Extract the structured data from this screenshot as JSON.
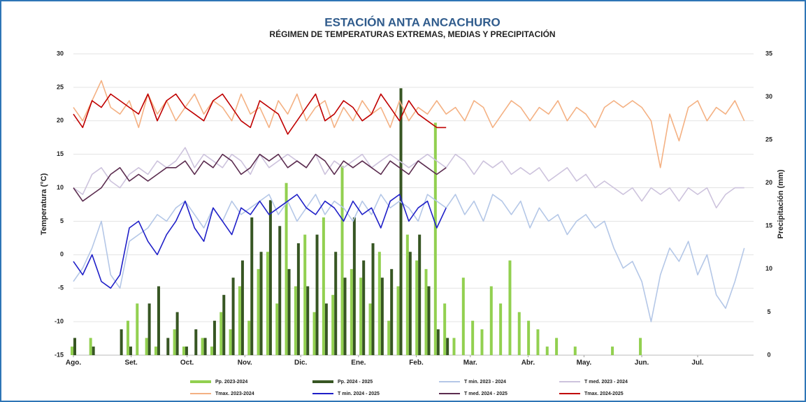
{
  "chart_data": {
    "type": "line",
    "title": "ESTACIÓN ANTA ANCACHURO",
    "subtitle": "RÉGIMEN DE TEMPERATURAS EXTREMAS, MEDIAS Y PRECIPITACIÓN",
    "y_label": "Temperatura (°C)",
    "y2_label": "Precipitación (mm)",
    "xlim": [
      0,
      365
    ],
    "xticks": [
      {
        "value": 0,
        "label": "Ago."
      },
      {
        "value": 31,
        "label": "Set."
      },
      {
        "value": 61,
        "label": "Oct."
      },
      {
        "value": 92,
        "label": "Nov."
      },
      {
        "value": 122,
        "label": "Dic."
      },
      {
        "value": 153,
        "label": "Ene."
      },
      {
        "value": 184,
        "label": "Feb."
      },
      {
        "value": 213,
        "label": "Mar."
      },
      {
        "value": 244,
        "label": "Abr."
      },
      {
        "value": 274,
        "label": "May."
      },
      {
        "value": 305,
        "label": "Jun."
      },
      {
        "value": 335,
        "label": "Jul."
      }
    ],
    "ylim": [
      -15,
      30
    ],
    "yticks": [
      -15,
      -10,
      -5,
      0,
      5,
      10,
      15,
      20,
      25,
      30
    ],
    "y2lim": [
      0,
      35
    ],
    "y2ticks": [
      0,
      5,
      10,
      15,
      20,
      25,
      30,
      35
    ],
    "grid": true,
    "x": [
      0,
      5,
      10,
      15,
      20,
      25,
      30,
      35,
      40,
      45,
      50,
      55,
      60,
      65,
      70,
      75,
      80,
      85,
      90,
      95,
      100,
      105,
      110,
      115,
      120,
      125,
      130,
      135,
      140,
      145,
      150,
      155,
      160,
      165,
      170,
      175,
      180,
      185,
      190,
      195,
      200,
      205,
      210,
      215,
      220,
      225,
      230,
      235,
      240,
      245,
      250,
      255,
      260,
      265,
      270,
      275,
      280,
      285,
      290,
      295,
      300,
      305,
      310,
      315,
      320,
      325,
      330,
      335,
      340,
      345,
      350,
      355,
      360
    ],
    "series": [
      {
        "name": "Pp. 2023-2024",
        "type": "bar",
        "axis": "y2",
        "color": "#92d050",
        "values": [
          1,
          0,
          2,
          0,
          0,
          0,
          4,
          6,
          2,
          1,
          0,
          3,
          1,
          0,
          2,
          1,
          5,
          3,
          8,
          4,
          10,
          12,
          6,
          20,
          8,
          14,
          5,
          16,
          7,
          22,
          10,
          9,
          6,
          12,
          4,
          8,
          14,
          11,
          10,
          27,
          6,
          2,
          9,
          4,
          3,
          8,
          6,
          11,
          5,
          4,
          3,
          1,
          2,
          0,
          1,
          0,
          0,
          0,
          1,
          0,
          0,
          2,
          0,
          0,
          0,
          0,
          0,
          0,
          0,
          0,
          0,
          0,
          0
        ]
      },
      {
        "name": "Pp. 2024 - 2025",
        "type": "bar",
        "axis": "y2",
        "color": "#375623",
        "values": [
          2,
          0,
          1,
          0,
          0,
          3,
          1,
          0,
          6,
          8,
          2,
          5,
          1,
          3,
          2,
          4,
          7,
          9,
          11,
          16,
          12,
          18,
          15,
          10,
          13,
          8,
          14,
          6,
          12,
          9,
          16,
          11,
          13,
          9,
          10,
          31,
          12,
          14,
          8,
          3,
          2,
          null,
          null,
          null,
          null,
          null,
          null,
          null,
          null,
          null,
          null,
          null,
          null,
          null,
          null,
          null,
          null,
          null,
          null,
          null,
          null,
          null,
          null,
          null,
          null,
          null,
          null,
          null,
          null,
          null,
          null,
          null,
          null
        ]
      },
      {
        "name": "T min. 2023 - 2024",
        "type": "line",
        "color": "#b4c7e7",
        "values": [
          -4,
          -2,
          1,
          5,
          -3,
          -5,
          2,
          3,
          4,
          6,
          5,
          7,
          8,
          6,
          4,
          7,
          5,
          8,
          6,
          7,
          8,
          9,
          6,
          8,
          5,
          7,
          9,
          6,
          8,
          7,
          5,
          8,
          6,
          9,
          7,
          8,
          7,
          5,
          9,
          8,
          7,
          9,
          6,
          8,
          5,
          9,
          8,
          6,
          8,
          4,
          7,
          5,
          6,
          3,
          5,
          6,
          4,
          5,
          1,
          -2,
          -1,
          -4,
          -10,
          -3,
          1,
          -1,
          2,
          -3,
          0,
          -6,
          -8,
          -4,
          1
        ]
      },
      {
        "name": "T med. 2023 - 2024",
        "type": "line",
        "color": "#cdc3dd",
        "values": [
          10,
          9,
          12,
          13,
          11,
          10,
          12,
          13,
          12,
          14,
          13,
          14,
          16,
          13,
          15,
          14,
          13,
          15,
          14,
          12,
          15,
          13,
          14,
          15,
          14,
          13,
          15,
          12,
          14,
          13,
          14,
          15,
          13,
          14,
          15,
          14,
          13,
          14,
          15,
          14,
          13,
          15,
          14,
          12,
          14,
          13,
          14,
          12,
          13,
          12,
          13,
          11,
          12,
          13,
          11,
          12,
          10,
          11,
          10,
          9,
          10,
          8,
          10,
          9,
          10,
          8,
          10,
          9,
          10,
          7,
          9,
          10,
          10
        ]
      },
      {
        "name": "Tmax. 2023-2024",
        "type": "line",
        "color": "#f4b183",
        "values": [
          22,
          20,
          23,
          26,
          22,
          21,
          23,
          19,
          24,
          21,
          23,
          20,
          22,
          24,
          21,
          23,
          22,
          20,
          24,
          21,
          22,
          19,
          23,
          21,
          24,
          20,
          22,
          23,
          19,
          22,
          20,
          23,
          21,
          22,
          19,
          23,
          20,
          22,
          21,
          23,
          21,
          22,
          20,
          23,
          22,
          19,
          21,
          23,
          22,
          20,
          22,
          21,
          23,
          20,
          22,
          21,
          19,
          22,
          23,
          22,
          23,
          22,
          20,
          13,
          21,
          17,
          22,
          23,
          20,
          22,
          21,
          23,
          20
        ]
      },
      {
        "name": "T min. 2024 - 2025",
        "type": "line",
        "color": "#1f1fc8",
        "values": [
          -1,
          -3,
          0,
          -4,
          -5,
          -3,
          4,
          5,
          2,
          0,
          3,
          5,
          8,
          4,
          2,
          7,
          5,
          3,
          7,
          6,
          8,
          6,
          7,
          8,
          9,
          7,
          6,
          8,
          7,
          5,
          8,
          6,
          7,
          4,
          8,
          9,
          5,
          7,
          8,
          4,
          7,
          null,
          null,
          null,
          null,
          null,
          null,
          null,
          null,
          null,
          null,
          null,
          null,
          null,
          null,
          null,
          null,
          null,
          null,
          null,
          null,
          null,
          null,
          null,
          null,
          null,
          null,
          null,
          null,
          null,
          null,
          null,
          null
        ]
      },
      {
        "name": "T med. 2024 - 2025",
        "type": "line",
        "color": "#5b2c4f",
        "values": [
          10,
          8,
          9,
          10,
          12,
          13,
          11,
          12,
          11,
          12,
          13,
          13,
          14,
          12,
          14,
          13,
          15,
          14,
          12,
          13,
          15,
          14,
          15,
          13,
          14,
          13,
          15,
          14,
          12,
          14,
          13,
          14,
          13,
          12,
          14,
          13,
          12,
          14,
          13,
          12,
          13,
          null,
          null,
          null,
          null,
          null,
          null,
          null,
          null,
          null,
          null,
          null,
          null,
          null,
          null,
          null,
          null,
          null,
          null,
          null,
          null,
          null,
          null,
          null,
          null,
          null,
          null,
          null,
          null,
          null,
          null,
          null,
          null
        ]
      },
      {
        "name": "Tmax. 2024-2025",
        "type": "line",
        "color": "#c00000",
        "values": [
          21,
          19,
          23,
          22,
          24,
          23,
          22,
          21,
          24,
          20,
          23,
          24,
          22,
          21,
          20,
          23,
          24,
          22,
          20,
          19,
          23,
          22,
          21,
          18,
          20,
          22,
          24,
          20,
          21,
          23,
          22,
          20,
          21,
          24,
          22,
          20,
          23,
          21,
          20,
          19,
          19,
          null,
          null,
          null,
          null,
          null,
          null,
          null,
          null,
          null,
          null,
          null,
          null,
          null,
          null,
          null,
          null,
          null,
          null,
          null,
          null,
          null,
          null,
          null,
          null,
          null,
          null,
          null,
          null,
          null,
          null,
          null,
          null
        ]
      }
    ]
  }
}
